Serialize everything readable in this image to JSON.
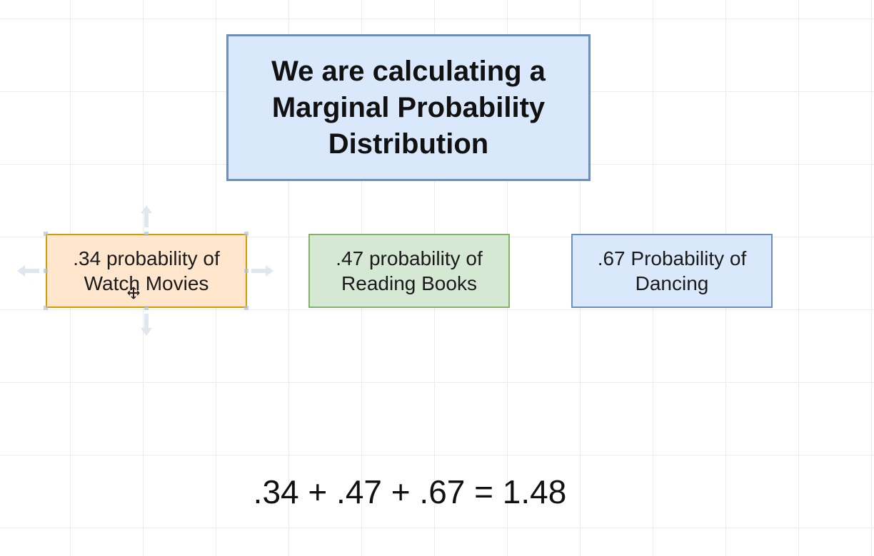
{
  "title": {
    "line1": "We are calculating a",
    "line2": "Marginal Probability",
    "line3": "Distribution"
  },
  "nodes": [
    {
      "line1": ".34 probability of",
      "line2": "Watch Movies",
      "fill": "#ffe6cc",
      "stroke": "#d79b00",
      "selected": true
    },
    {
      "line1": ".47 probability of",
      "line2": "Reading Books",
      "fill": "#d5e8d4",
      "stroke": "#82b366",
      "selected": false
    },
    {
      "line1": ".67 Probability of",
      "line2": "Dancing",
      "fill": "#dae8fc",
      "stroke": "#6c8ebf",
      "selected": false
    }
  ],
  "equation": ".34 + .47 + .67 = 1.48",
  "colors": {
    "title_fill": "#dae8fc",
    "title_stroke": "#6c8ebf",
    "grid": "#ececec"
  },
  "icons": {
    "cursor": "move-cursor-icon",
    "connection_arrows": "connect-arrow-icon"
  }
}
